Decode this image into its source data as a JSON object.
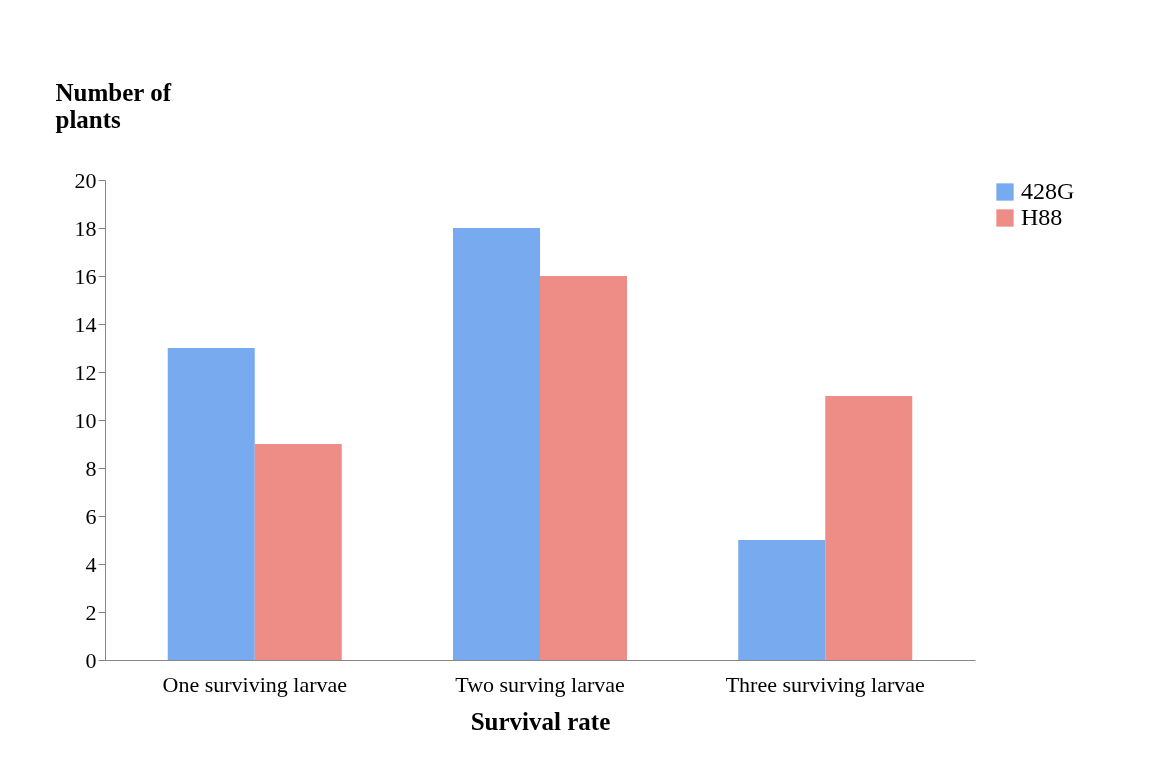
{
  "chart_data": {
    "type": "bar",
    "xlabel": "Survival rate",
    "ylabel": "Number of plants",
    "categories": [
      "One surviving larvae",
      "Two surving larvae",
      "Three surviving larvae"
    ],
    "series": [
      {
        "name": "428G",
        "color": "#78aaf0",
        "values": [
          13,
          18,
          5
        ]
      },
      {
        "name": "H88",
        "color": "#ee8c86",
        "values": [
          9,
          16,
          11
        ]
      }
    ],
    "ylim": [
      0,
      20
    ],
    "yticks": [
      0,
      2,
      4,
      6,
      8,
      10,
      12,
      14,
      16,
      18,
      20
    ],
    "grid": false,
    "legend": "right"
  }
}
